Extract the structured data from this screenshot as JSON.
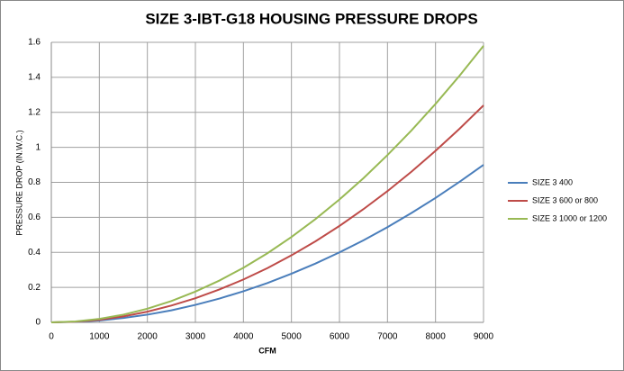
{
  "chart_data": {
    "type": "line",
    "title": "SIZE 3-IBT-G18 HOUSING PRESSURE DROPS",
    "x_label": "CFM",
    "y_label": "PRESSURE  DROP  (IN.W.C.)",
    "x": [
      0,
      500,
      1000,
      1500,
      2000,
      2500,
      3000,
      3500,
      4000,
      4500,
      5000,
      5500,
      6000,
      6500,
      7000,
      7500,
      8000,
      8500,
      9000
    ],
    "series": [
      {
        "name": "SIZE 3  400",
        "color": "#4a7ebb",
        "values": [
          0,
          0.003,
          0.011,
          0.025,
          0.044,
          0.069,
          0.1,
          0.136,
          0.178,
          0.225,
          0.278,
          0.336,
          0.4,
          0.469,
          0.544,
          0.625,
          0.711,
          0.803,
          0.9
        ]
      },
      {
        "name": "SIZE 3  600  or 800",
        "color": "#be4b48",
        "values": [
          0,
          0.004,
          0.015,
          0.034,
          0.061,
          0.096,
          0.138,
          0.188,
          0.245,
          0.31,
          0.383,
          0.463,
          0.551,
          0.647,
          0.75,
          0.861,
          0.98,
          1.106,
          1.24
        ]
      },
      {
        "name": "SIZE 3  1000  or  1200",
        "color": "#98b954",
        "values": [
          0,
          0.005,
          0.02,
          0.044,
          0.078,
          0.122,
          0.176,
          0.239,
          0.312,
          0.395,
          0.488,
          0.59,
          0.702,
          0.824,
          0.956,
          1.097,
          1.248,
          1.409,
          1.58
        ]
      }
    ],
    "xlim": [
      0,
      9000
    ],
    "xticks": [
      0,
      1000,
      2000,
      3000,
      4000,
      5000,
      6000,
      7000,
      8000,
      9000
    ],
    "ylim": [
      0,
      1.6
    ],
    "yticks": [
      0,
      0.2,
      0.4,
      0.6,
      0.8,
      1,
      1.2,
      1.4,
      1.6
    ],
    "grid": true,
    "legend": "right"
  }
}
